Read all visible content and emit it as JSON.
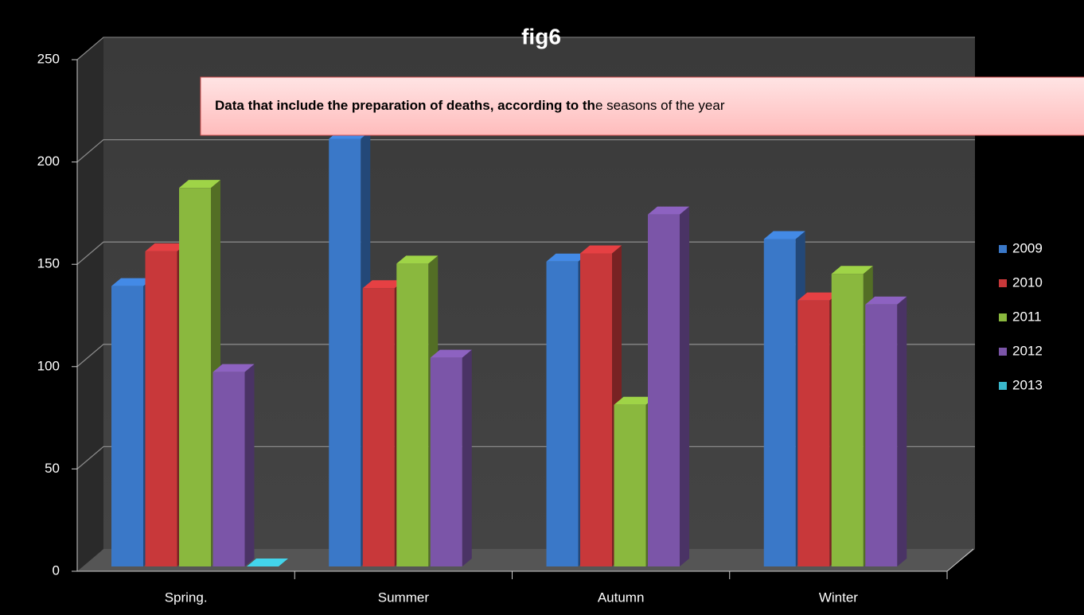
{
  "chart_data": {
    "type": "bar3d",
    "title": "fig6",
    "annotation": [
      "Data that include the preparation of deaths, according to th",
      "e seasons of the year"
    ],
    "categories": [
      "Spring.",
      "Summer",
      "Autumn",
      "Winter"
    ],
    "series": [
      {
        "name": "2009",
        "color": "#3a78c8",
        "values": [
          137,
          209,
          149,
          160
        ]
      },
      {
        "name": "2010",
        "color": "#c8383a",
        "values": [
          154,
          136,
          153,
          130
        ]
      },
      {
        "name": "2011",
        "color": "#8ab83e",
        "values": [
          185,
          148,
          79,
          143
        ]
      },
      {
        "name": "2012",
        "color": "#7b55a8",
        "values": [
          95,
          102,
          172,
          128
        ]
      },
      {
        "name": "2013",
        "color": "#3ab8cc",
        "values": [
          0,
          null,
          null,
          null
        ]
      }
    ],
    "ylim": [
      0,
      250
    ],
    "yticks": [
      0,
      50,
      100,
      150,
      200,
      250
    ],
    "grid": true,
    "legend": "right"
  }
}
